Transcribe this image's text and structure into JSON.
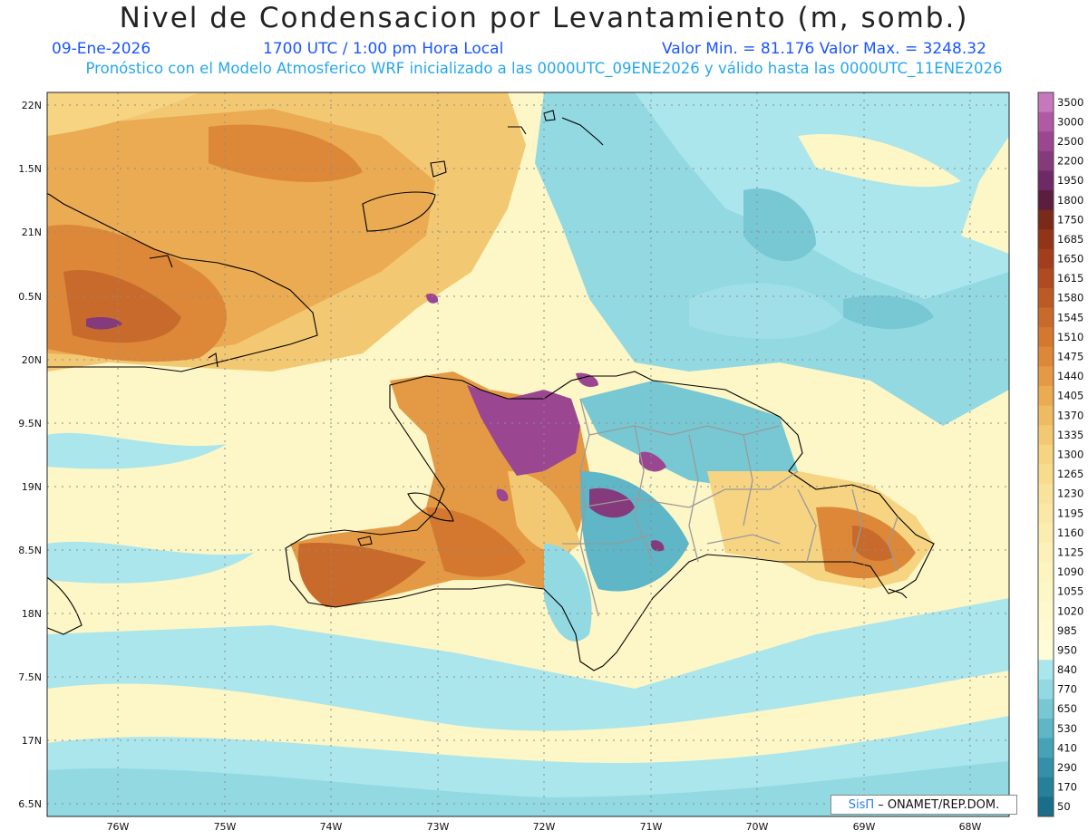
{
  "header": {
    "title": "Nivel de Condensacion por Levantamiento (m, somb.)",
    "date": "09-Ene-2026",
    "time": "1700 UTC / 1:00 pm Hora Local",
    "minmax": "Valor Min. = 81.176  Valor Max. = 3248.32",
    "model_line": "Pronóstico con el Modelo Atmosferico WRF inicializado a las 0000UTC_09ENE2026 y válido hasta las  0000UTC_11ENE2026"
  },
  "axes": {
    "lat_labels": [
      "22N",
      "1.5N",
      "21N",
      "0.5N",
      "20N",
      "9.5N",
      "19N",
      "8.5N",
      "18N",
      "7.5N",
      "17N",
      "6.5N"
    ],
    "lon_labels": [
      "76W",
      "75W",
      "74W",
      "73W",
      "72W",
      "71W",
      "70W",
      "69W",
      "68W"
    ]
  },
  "colorbar": {
    "levels": [
      "3500",
      "3000",
      "2500",
      "2200",
      "1950",
      "1800",
      "1750",
      "1685",
      "1650",
      "1615",
      "1580",
      "1545",
      "1510",
      "1475",
      "1440",
      "1405",
      "1370",
      "1335",
      "1300",
      "1265",
      "1230",
      "1195",
      "1160",
      "1125",
      "1090",
      "1055",
      "1020",
      "985",
      "950",
      "840",
      "770",
      "650",
      "530",
      "410",
      "290",
      "170",
      "50"
    ],
    "colors": [
      "#c678be",
      "#b05aa6",
      "#9a4690",
      "#853a7c",
      "#6e2a66",
      "#5c1e3e",
      "#7a2a18",
      "#923418",
      "#a23e1c",
      "#b04a20",
      "#bc5a26",
      "#c86a2c",
      "#d47830",
      "#dc8838",
      "#e49a44",
      "#eaab52",
      "#efbb62",
      "#f3c872",
      "#f6d482",
      "#f8dc8e",
      "#f9e39c",
      "#fae9a6",
      "#fbedb0",
      "#fcf1b8",
      "#fdf4c0",
      "#fdf6c6",
      "#fef8cc",
      "#fffad2",
      "#fffcd8",
      "#aae6ec",
      "#92d9e2",
      "#78c8d4",
      "#5eb6c6",
      "#46a2b6",
      "#3490a8",
      "#26809a",
      "#1a6e8a"
    ]
  },
  "credit": {
    "brand": "SisΠ",
    "text": "– ONAMET/REP.DOM."
  }
}
